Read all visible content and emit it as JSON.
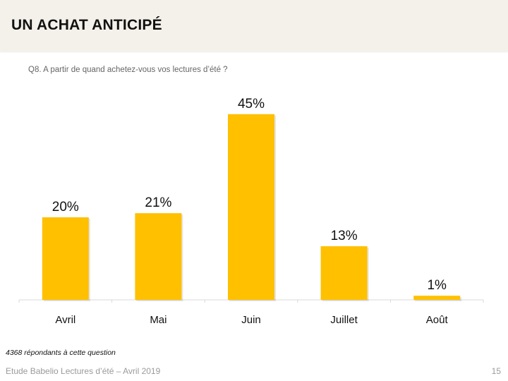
{
  "slide": {
    "title": "UN ACHAT ANTICIPÉ",
    "question": "Q8. A partir de quand achetez-vous vos lectures d’été ?",
    "note": "4368 répondants à cette question",
    "footer": "Etude Babelio Lectures d’été – Avril 2019",
    "page_number": "15"
  },
  "colors": {
    "bar": "#ffc000",
    "header_bg": "#f4f1ea",
    "axis": "#d9d9d9"
  },
  "chart_data": {
    "type": "bar",
    "categories": [
      "Avril",
      "Mai",
      "Juin",
      "Juillet",
      "Août"
    ],
    "values": [
      20,
      21,
      45,
      13,
      1
    ],
    "data_labels": [
      "20%",
      "21%",
      "45%",
      "13%",
      "1%"
    ],
    "unit": "%",
    "ylim": [
      0,
      50
    ],
    "grid": false,
    "legend": "none"
  }
}
